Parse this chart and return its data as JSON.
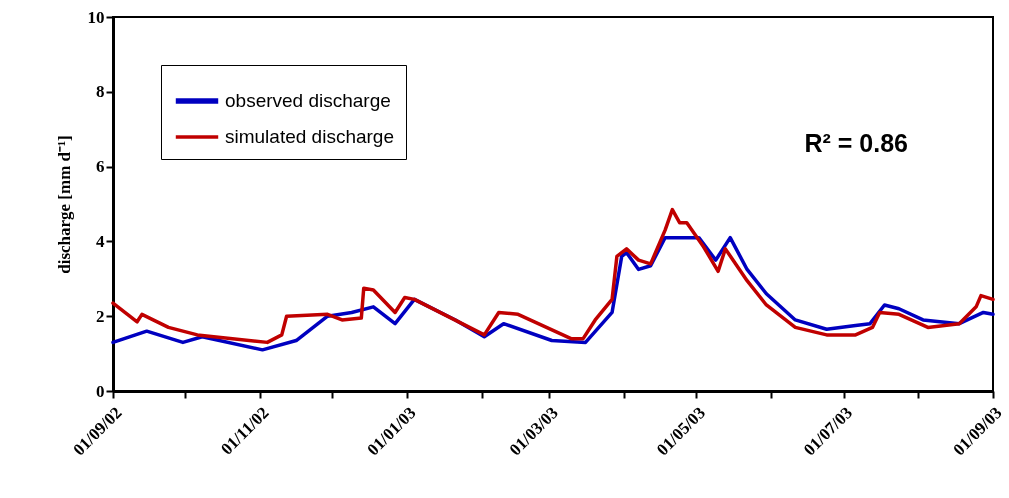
{
  "chart_data": {
    "type": "line",
    "ylabel": "discharge [mm d⁻¹]",
    "annotations": [
      "R² = 0.86"
    ],
    "xlim": [
      "2002-09-01",
      "2003-09-01"
    ],
    "ylim": [
      0,
      10
    ],
    "yticks": [
      0,
      2,
      4,
      6,
      8,
      10
    ],
    "xticks": [
      {
        "value": "2002-09-01",
        "label": "01/09/02"
      },
      {
        "value": "2002-10-01",
        "label": null
      },
      {
        "value": "2002-11-01",
        "label": "01/11/02"
      },
      {
        "value": "2002-12-01",
        "label": null
      },
      {
        "value": "2003-01-01",
        "label": "01/01/03"
      },
      {
        "value": "2003-02-01",
        "label": null
      },
      {
        "value": "2003-03-01",
        "label": "01/03/03"
      },
      {
        "value": "2003-04-01",
        "label": null
      },
      {
        "value": "2003-05-01",
        "label": "01/05/03"
      },
      {
        "value": "2003-06-01",
        "label": null
      },
      {
        "value": "2003-07-01",
        "label": "01/07/03"
      },
      {
        "value": "2003-08-01",
        "label": null
      },
      {
        "value": "2003-09-01",
        "label": "01/09/03"
      }
    ],
    "grid": false,
    "legend": "top left",
    "marker": "none",
    "line_style": "solid",
    "series": [
      {
        "name": "observed discharge",
        "color": "#0000c0",
        "x": [
          "2002-09-01",
          "2002-09-15",
          "2002-09-30",
          "2002-10-08",
          "2002-11-02",
          "2002-11-16",
          "2002-11-29",
          "2002-12-09",
          "2002-12-18",
          "2002-12-27",
          "2003-01-04",
          "2003-01-21",
          "2003-02-02",
          "2003-02-10",
          "2003-03-02",
          "2003-03-16",
          "2003-03-27",
          "2003-03-31",
          "2003-04-02",
          "2003-04-07",
          "2003-04-12",
          "2003-04-18",
          "2003-05-02",
          "2003-05-09",
          "2003-05-15",
          "2003-05-22",
          "2003-05-30",
          "2003-06-11",
          "2003-06-24",
          "2003-07-06",
          "2003-07-12",
          "2003-07-18",
          "2003-07-24",
          "2003-08-03",
          "2003-08-18",
          "2003-08-28",
          "2003-09-01"
        ],
        "values": [
          1.3,
          1.6,
          1.3,
          1.45,
          1.1,
          1.35,
          2.0,
          2.1,
          2.25,
          1.8,
          2.45,
          1.9,
          1.45,
          1.8,
          1.35,
          1.3,
          2.1,
          3.6,
          3.7,
          3.25,
          3.35,
          4.1,
          4.1,
          3.5,
          4.1,
          3.25,
          2.6,
          1.9,
          1.65,
          1.75,
          1.8,
          2.3,
          2.2,
          1.9,
          1.8,
          2.1,
          2.05
        ]
      },
      {
        "name": "simulated discharge",
        "color": "#c00000",
        "x": [
          "2002-09-01",
          "2002-09-11",
          "2002-09-13",
          "2002-09-24",
          "2002-10-06",
          "2002-11-04",
          "2002-11-10",
          "2002-11-12",
          "2002-11-29",
          "2002-12-05",
          "2002-12-13",
          "2002-12-14",
          "2002-12-18",
          "2002-12-27",
          "2002-12-31",
          "2003-01-04",
          "2003-02-02",
          "2003-02-08",
          "2003-02-16",
          "2003-03-10",
          "2003-03-15",
          "2003-03-20",
          "2003-03-27",
          "2003-03-29",
          "2003-04-02",
          "2003-04-07",
          "2003-04-12",
          "2003-04-18",
          "2003-04-21",
          "2003-04-24",
          "2003-04-27",
          "2003-05-04",
          "2003-05-10",
          "2003-05-13",
          "2003-05-22",
          "2003-05-30",
          "2003-06-11",
          "2003-06-24",
          "2003-07-06",
          "2003-07-13",
          "2003-07-16",
          "2003-07-24",
          "2003-08-05",
          "2003-08-18",
          "2003-08-25",
          "2003-08-27",
          "2003-09-01"
        ],
        "values": [
          2.35,
          1.85,
          2.05,
          1.7,
          1.5,
          1.3,
          1.5,
          2.0,
          2.05,
          1.9,
          1.95,
          2.75,
          2.7,
          2.1,
          2.5,
          2.45,
          1.5,
          2.1,
          2.05,
          1.4,
          1.4,
          1.9,
          2.45,
          3.6,
          3.8,
          3.5,
          3.4,
          4.3,
          4.85,
          4.5,
          4.5,
          3.85,
          3.2,
          3.8,
          2.95,
          2.3,
          1.7,
          1.5,
          1.5,
          1.7,
          2.1,
          2.05,
          1.7,
          1.8,
          2.25,
          2.55,
          2.45
        ]
      }
    ]
  }
}
